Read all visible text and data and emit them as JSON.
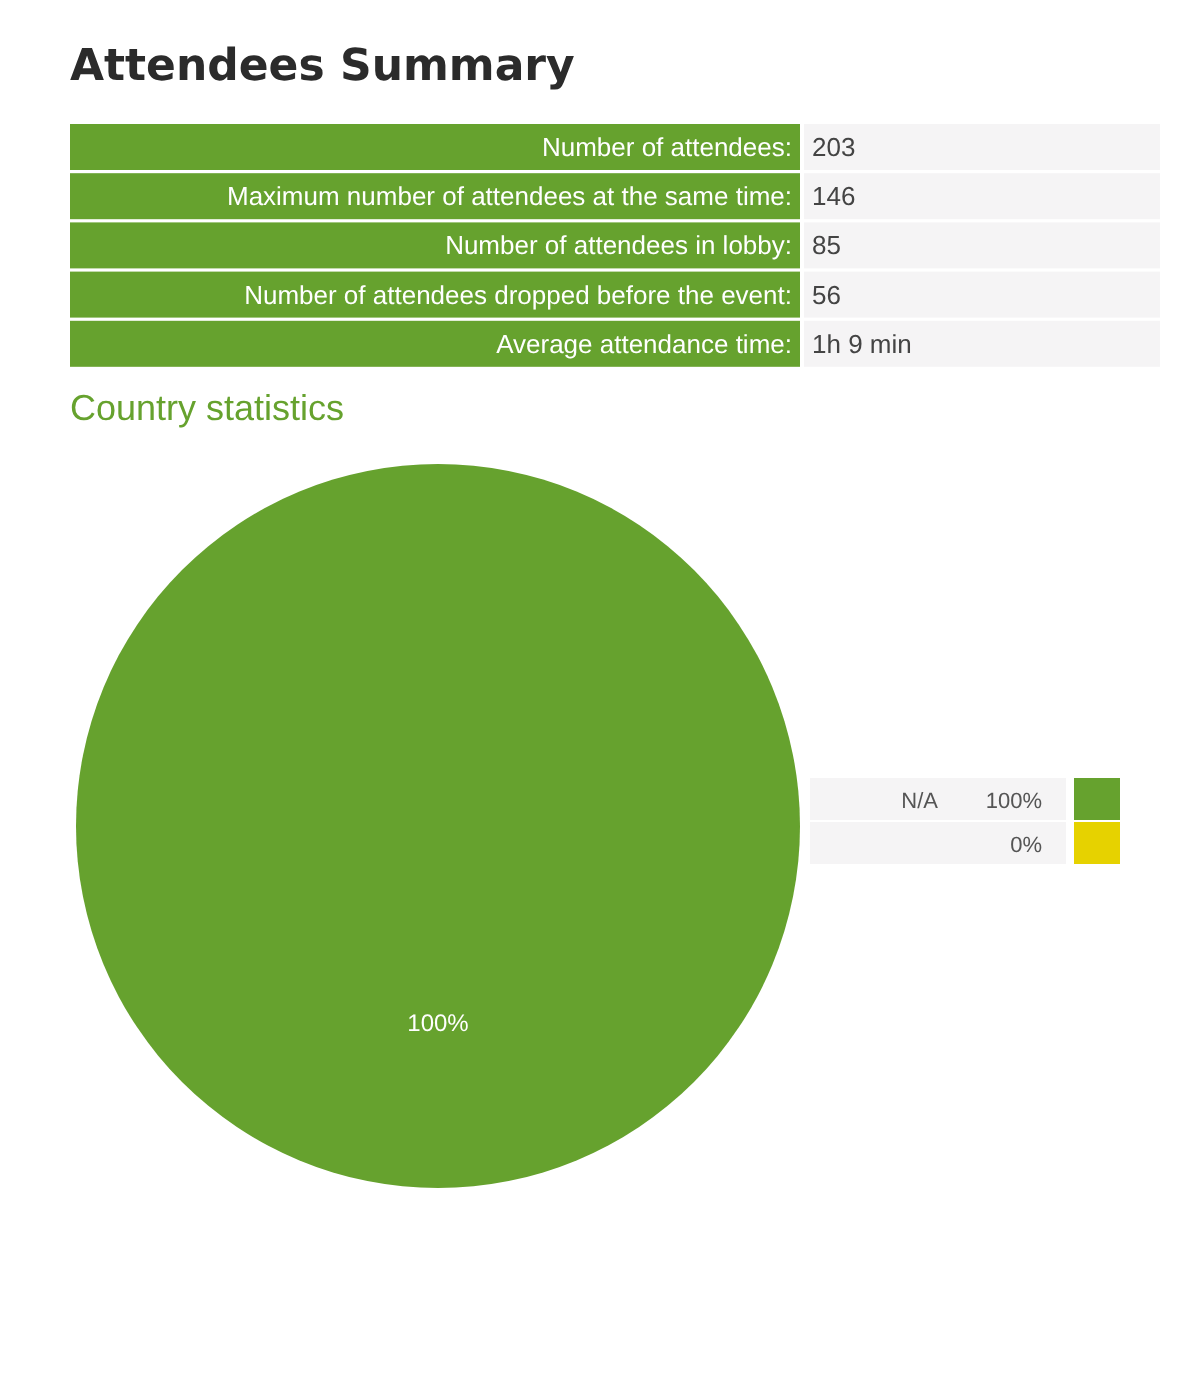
{
  "chart_data": [
    {
      "type": "other",
      "title": "Attendees Summary",
      "color": "#66a22e",
      "annotations": [
        "Number of attendees:",
        "203",
        "Maximum number of attendees at the same time:",
        "146",
        "Number of attendees in lobby:",
        "85",
        "Number of attendees dropped before the event:",
        "56",
        "Average attendance time:",
        "1h 9 min"
      ]
    },
    {
      "type": "pie",
      "title": "Country statistics",
      "categories": [
        "N/A",
        null
      ],
      "values": [
        100,
        0
      ],
      "colors": [
        "#66a22e",
        "#e6d200"
      ],
      "value_labels": [
        "100%",
        "0%"
      ]
    }
  ]
}
